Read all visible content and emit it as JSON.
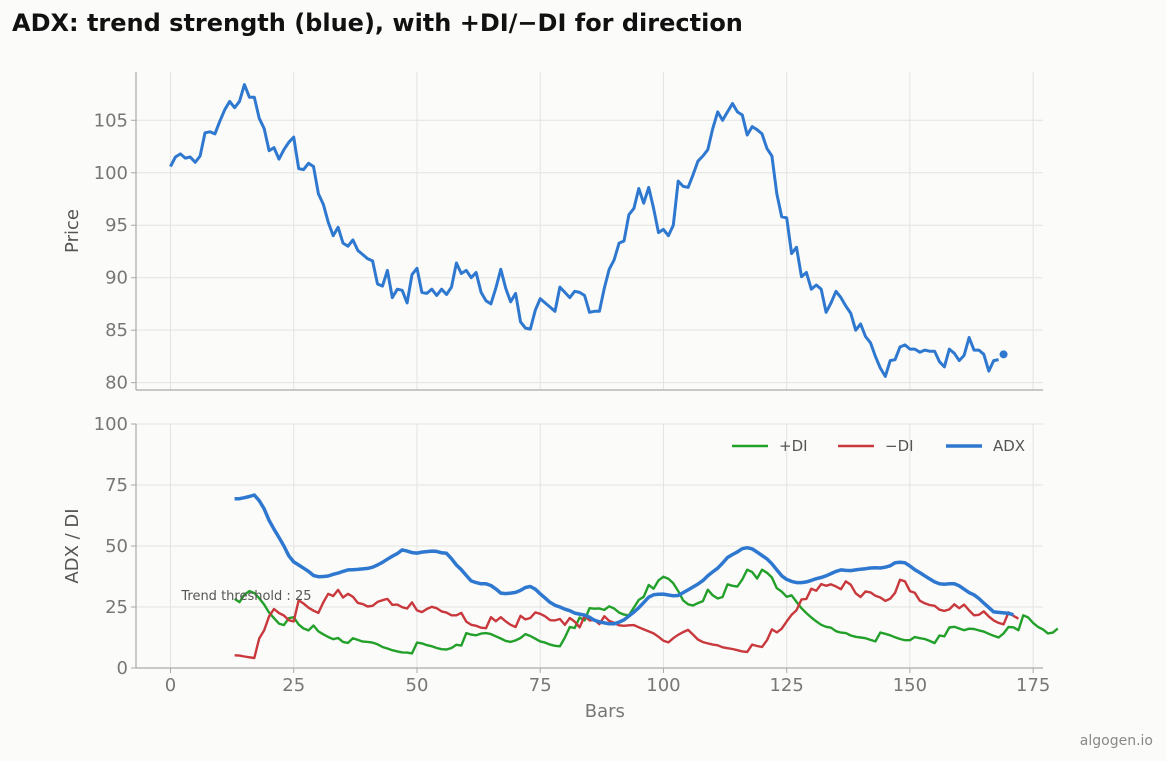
{
  "title": "ADX: trend strength (blue), with +DI/−DI for direction",
  "watermark": "algogen.io",
  "chart_data": [
    {
      "type": "line",
      "ylabel": "Price",
      "ylim": [
        79.3,
        109.6
      ],
      "xlim": [
        -7,
        177
      ],
      "yticks": [
        80,
        85,
        90,
        95,
        100,
        105
      ],
      "grid": true,
      "series": [
        {
          "color": "#2f78d0",
          "x_start": 0,
          "values": [
            100.6,
            101.5,
            101.8,
            101.4,
            101.5,
            101.0,
            101.6,
            103.8,
            103.9,
            103.7,
            104.9,
            106.0,
            106.8,
            106.2,
            106.8,
            108.4,
            107.2,
            107.2,
            105.2,
            104.2,
            102.1,
            102.4,
            101.3,
            102.2,
            102.9,
            103.4,
            100.4,
            100.3,
            100.9,
            100.6,
            98.0,
            97.0,
            95.3,
            94.0,
            94.8,
            93.3,
            93.0,
            93.6,
            92.6,
            92.2,
            91.8,
            91.6,
            89.4,
            89.2,
            90.7,
            88.1,
            88.9,
            88.8,
            87.6,
            90.3,
            90.9,
            88.6,
            88.5,
            88.9,
            88.3,
            88.9,
            88.4,
            89.1,
            91.4,
            90.4,
            90.7,
            90.0,
            90.5,
            88.6,
            87.8,
            87.5,
            89.0,
            90.8,
            89.0,
            87.7,
            88.5,
            85.8,
            85.2,
            85.1,
            86.9,
            88.0,
            87.6,
            87.2,
            86.8,
            89.1,
            88.6,
            88.1,
            88.7,
            88.6,
            88.3,
            86.7,
            86.8,
            86.8,
            89.0,
            90.8,
            91.7,
            93.3,
            93.5,
            96.0,
            96.6,
            98.5,
            97.1,
            98.6,
            96.6,
            94.3,
            94.6,
            94.0,
            95.0,
            99.2,
            98.7,
            98.6,
            99.8,
            101.1,
            101.6,
            102.2,
            104.2,
            105.8,
            105.0,
            105.8,
            106.6,
            105.8,
            105.5,
            103.6,
            104.4,
            104.1,
            103.7,
            102.3,
            101.6,
            98.0,
            95.8,
            95.7,
            92.3,
            92.9,
            90.1,
            90.5,
            88.9,
            89.3,
            88.9,
            86.7,
            87.6,
            88.7,
            88.1,
            87.3,
            86.6,
            85.0,
            85.6,
            84.4,
            83.8,
            82.5,
            81.4,
            80.6,
            82.1,
            82.2,
            83.4,
            83.6,
            83.2,
            83.2,
            82.9,
            83.1,
            83.0,
            83.0,
            82.0,
            81.5,
            83.2,
            82.8,
            82.1,
            82.6,
            84.3,
            83.1,
            83.1,
            82.7,
            81.1,
            82.1,
            82.2
          ]
        }
      ],
      "last_point": {
        "x": 169,
        "y": 82.7
      }
    },
    {
      "type": "line",
      "xlabel": "Bars",
      "ylabel": "ADX / DI",
      "ylim": [
        0,
        100
      ],
      "xlim": [
        -7,
        177
      ],
      "xticks": [
        0,
        25,
        50,
        75,
        100,
        125,
        150,
        175
      ],
      "yticks": [
        0,
        25,
        50,
        75,
        100
      ],
      "grid": true,
      "legend_position": "top-right",
      "annotation": {
        "text": "Trend threshold : 25",
        "x": 2,
        "y": 25
      },
      "series": [
        {
          "name": "+DI",
          "color": "#22a02a",
          "x_start": 13,
          "values": [
            28.3,
            27.0,
            30.1,
            31.5,
            30.7,
            28.6,
            26.0,
            22.7,
            20.4,
            18.2,
            17.6,
            20.4,
            20.8,
            17.8,
            16.2,
            15.4,
            17.4,
            15.0,
            13.8,
            12.7,
            11.8,
            12.3,
            10.7,
            10.3,
            12.2,
            11.5,
            10.8,
            10.7,
            10.4,
            9.7,
            8.6,
            8.0,
            7.3,
            6.8,
            6.4,
            6.3,
            6.0,
            10.4,
            10.1,
            9.4,
            8.9,
            8.2,
            7.7,
            7.6,
            8.2,
            9.5,
            9.2,
            14.3,
            13.7,
            13.4,
            14.1,
            14.3,
            13.9,
            13.0,
            12.1,
            11.1,
            10.7,
            11.3,
            12.3,
            13.9,
            13.1,
            12.0,
            10.9,
            10.4,
            9.6,
            9.1,
            8.9,
            12.5,
            16.8,
            16.4,
            20.7,
            19.5,
            24.5,
            24.3,
            24.4,
            23.8,
            25.3,
            24.4,
            22.7,
            21.9,
            21.6,
            24.8,
            27.9,
            29.2,
            34.0,
            32.5,
            35.9,
            37.4,
            36.6,
            34.7,
            31.5,
            27.7,
            26.1,
            25.6,
            26.6,
            27.4,
            32.1,
            29.8,
            28.5,
            29.1,
            34.3,
            33.7,
            33.4,
            36.3,
            40.3,
            39.3,
            36.7,
            40.3,
            39.0,
            37.1,
            32.7,
            31.3,
            29.2,
            29.8,
            27.1,
            24.5,
            22.5,
            20.7,
            19.1,
            17.7,
            16.9,
            16.5,
            15.1,
            14.5,
            14.3,
            13.3,
            12.8,
            12.5,
            12.2,
            11.5,
            10.9,
            14.5,
            14.0,
            13.4,
            12.6,
            11.9,
            11.4,
            11.4,
            12.7,
            12.2,
            11.9,
            11.1,
            10.2,
            13.3,
            13.0,
            16.6,
            16.9,
            16.2,
            15.5,
            16.1,
            16.0,
            15.4,
            14.9,
            14.0,
            13.2,
            12.5,
            14.2,
            16.8,
            16.7,
            15.5,
            21.6,
            20.7,
            18.5,
            16.8,
            15.8,
            14.2,
            14.5,
            16.2
          ]
        },
        {
          "name": "−DI",
          "color": "#c8383c",
          "x_start": 13,
          "values": [
            5.2,
            5.1,
            4.7,
            4.4,
            4.1,
            12.1,
            15.5,
            21.2,
            24.2,
            22.5,
            21.5,
            19.6,
            19.1,
            27.8,
            26.4,
            24.7,
            23.5,
            22.6,
            26.9,
            30.4,
            29.5,
            32.0,
            28.9,
            30.4,
            29.2,
            26.7,
            26.2,
            25.2,
            25.5,
            27.1,
            27.8,
            28.3,
            25.9,
            26.0,
            24.9,
            24.4,
            26.9,
            23.6,
            22.9,
            24.2,
            25.1,
            24.5,
            23.2,
            22.7,
            21.6,
            21.6,
            22.6,
            19.0,
            17.7,
            17.3,
            16.5,
            16.3,
            20.8,
            19.2,
            20.8,
            19.1,
            17.7,
            16.8,
            21.4,
            19.9,
            20.5,
            22.8,
            22.2,
            21.2,
            19.6,
            19.5,
            20.1,
            17.7,
            20.5,
            19.0,
            16.7,
            21.3,
            19.5,
            19.7,
            18.0,
            21.2,
            19.3,
            18.5,
            17.5,
            17.3,
            17.5,
            17.6,
            16.7,
            15.8,
            15.0,
            14.2,
            12.8,
            11.2,
            10.5,
            12.2,
            13.6,
            14.7,
            15.6,
            13.7,
            11.7,
            10.6,
            10.1,
            9.6,
            9.3,
            8.5,
            8.1,
            7.8,
            7.3,
            6.8,
            6.6,
            9.6,
            9.0,
            8.6,
            11.4,
            15.8,
            14.6,
            16.1,
            19.1,
            21.8,
            23.7,
            28.1,
            28.3,
            32.5,
            31.7,
            34.4,
            33.7,
            34.3,
            33.4,
            32.3,
            35.5,
            34.1,
            30.6,
            29.1,
            31.4,
            31.0,
            29.6,
            28.9,
            27.5,
            28.4,
            30.8,
            36.2,
            35.5,
            31.5,
            30.8,
            27.6,
            26.5,
            25.8,
            25.5,
            23.9,
            23.4,
            24.0,
            26.1,
            24.5,
            26.0,
            23.6,
            21.6,
            21.8,
            23.2,
            21.1,
            19.5,
            18.5,
            17.9,
            22.8,
            21.4,
            20.2
          ]
        },
        {
          "name": "ADX",
          "color": "#2f78d0",
          "x_start": 13,
          "values": [
            69.4,
            69.4,
            69.8,
            70.3,
            70.9,
            68.6,
            65.2,
            60.5,
            56.9,
            53.5,
            50.0,
            46.0,
            43.5,
            42.2,
            40.9,
            39.6,
            37.9,
            37.4,
            37.5,
            37.7,
            38.4,
            38.9,
            39.6,
            40.2,
            40.3,
            40.4,
            40.6,
            40.8,
            41.3,
            42.2,
            43.3,
            44.6,
            45.8,
            46.9,
            48.4,
            47.9,
            47.3,
            47.1,
            47.5,
            47.7,
            47.9,
            47.8,
            47.2,
            47.0,
            44.8,
            42.2,
            40.3,
            37.9,
            35.7,
            35.0,
            34.5,
            34.5,
            33.8,
            32.4,
            30.7,
            30.5,
            30.7,
            31.0,
            31.8,
            33.0,
            33.4,
            32.3,
            30.4,
            28.7,
            26.9,
            25.7,
            25.0,
            24.1,
            23.5,
            22.5,
            22.1,
            21.7,
            20.8,
            19.6,
            18.9,
            18.5,
            18.1,
            18.1,
            18.8,
            19.7,
            21.3,
            22.9,
            24.7,
            26.8,
            29.0,
            30.0,
            30.2,
            30.3,
            29.9,
            29.6,
            29.7,
            30.9,
            32.0,
            33.2,
            34.4,
            35.8,
            37.8,
            39.4,
            40.9,
            43.0,
            45.3,
            46.5,
            47.6,
            48.9,
            49.3,
            48.8,
            47.5,
            46.1,
            44.7,
            42.7,
            40.2,
            37.8,
            36.3,
            35.5,
            35.0,
            35.0,
            35.3,
            35.9,
            36.6,
            37.1,
            37.8,
            38.7,
            39.6,
            40.2,
            40.0,
            39.9,
            40.2,
            40.5,
            40.7,
            41.0,
            41.1,
            41.0,
            41.3,
            41.9,
            43.1,
            43.3,
            43.1,
            41.8,
            40.3,
            39.1,
            37.8,
            36.5,
            35.3,
            34.5,
            34.3,
            34.5,
            34.5,
            33.7,
            32.3,
            30.9,
            30.0,
            28.5,
            26.6,
            24.8,
            23.0,
            22.8,
            22.6,
            22.4,
            21.8
          ]
        }
      ]
    }
  ]
}
